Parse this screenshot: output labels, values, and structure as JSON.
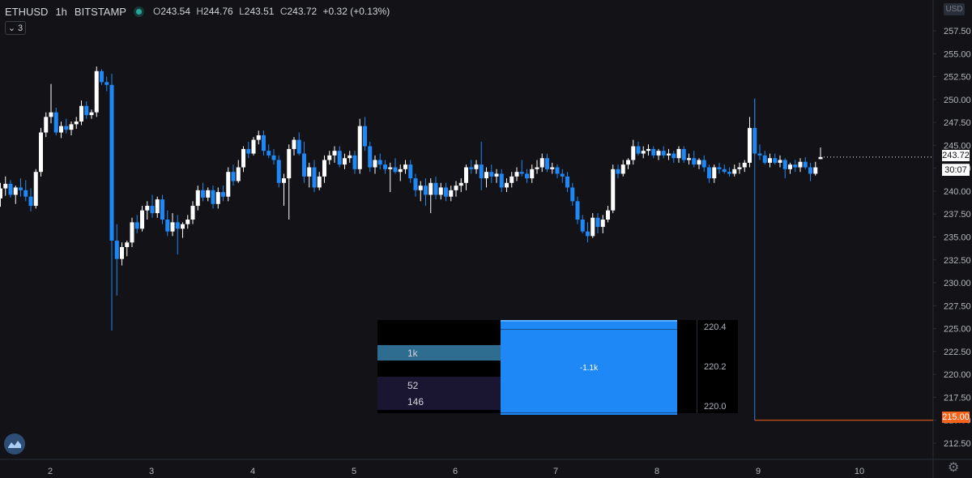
{
  "header": {
    "symbol": "ETHUSD",
    "interval": "1h",
    "exchange": "BITSTAMP",
    "open_label": "O",
    "open": "243.54",
    "high_label": "H",
    "high": "244.76",
    "low_label": "L",
    "low": "243.51",
    "close_label": "C",
    "close": "243.72",
    "change": "+0.32 (+0.13%)"
  },
  "indicators_count": "3",
  "currency": "USD",
  "last_price_label": "243.72",
  "countdown": "30:07",
  "alert_price_label": "215.00",
  "colors": {
    "up": "#ffffff",
    "down": "#1e88f7",
    "alert": "#f7631b",
    "background": "#131317"
  },
  "chart_data": {
    "type": "candlestick",
    "y_ticks": [
      "257.50",
      "255.00",
      "252.50",
      "250.00",
      "247.50",
      "245.00",
      "242.50",
      "240.00",
      "237.50",
      "235.00",
      "232.50",
      "230.00",
      "227.50",
      "225.00",
      "222.50",
      "220.00",
      "217.50",
      "215.00",
      "212.50"
    ],
    "x_ticks": [
      "2",
      "3",
      "4",
      "5",
      "6",
      "7",
      "8",
      "9",
      "10"
    ],
    "ylim": [
      211.1,
      259.1
    ],
    "grid": false,
    "last_price": 243.72,
    "alert_line": 215.0,
    "candle_hours": 180,
    "ohlc": [
      [
        0,
        239.2,
        240.9,
        238.3,
        240.3
      ],
      [
        1,
        240.3,
        241.6,
        239.5,
        240.8
      ],
      [
        2,
        240.8,
        241.2,
        239.3,
        239.6
      ],
      [
        3,
        239.6,
        240.6,
        238.6,
        240.4
      ],
      [
        4,
        240.4,
        241.4,
        239.4,
        240.1
      ],
      [
        5,
        240.1,
        241.2,
        238.9,
        239.4
      ],
      [
        6,
        239.4,
        240.3,
        237.8,
        238.4
      ],
      [
        7,
        238.4,
        242.4,
        238.1,
        242.1
      ],
      [
        8,
        242.1,
        246.9,
        241.6,
        246.4
      ],
      [
        9,
        246.4,
        248.6,
        245.9,
        248.1
      ],
      [
        10,
        248.1,
        251.7,
        247.4,
        248.6
      ],
      [
        11,
        248.6,
        249.1,
        246.1,
        246.4
      ],
      [
        12,
        246.4,
        247.6,
        245.8,
        247.1
      ],
      [
        13,
        247.1,
        247.9,
        246.3,
        246.7
      ],
      [
        14,
        246.7,
        247.6,
        246.1,
        247.3
      ],
      [
        15,
        247.3,
        248.1,
        246.8,
        247.6
      ],
      [
        16,
        247.6,
        249.9,
        247.2,
        249.3
      ],
      [
        17,
        249.3,
        249.8,
        247.9,
        248.3
      ],
      [
        18,
        248.3,
        248.9,
        247.9,
        248.6
      ],
      [
        19,
        248.6,
        253.6,
        248.1,
        253.1
      ],
      [
        20,
        253.1,
        253.3,
        251.6,
        251.9
      ],
      [
        21,
        251.9,
        252.5,
        250.9,
        251.6
      ],
      [
        22,
        251.6,
        252.8,
        224.8,
        234.6
      ],
      [
        23,
        234.6,
        236.4,
        228.6,
        232.6
      ],
      [
        24,
        232.6,
        234.4,
        231.9,
        233.9
      ],
      [
        25,
        233.9,
        234.6,
        232.9,
        234.4
      ],
      [
        26,
        234.4,
        237.1,
        233.9,
        236.6
      ],
      [
        27,
        236.6,
        237.4,
        235.4,
        235.9
      ],
      [
        28,
        235.9,
        238.4,
        235.6,
        237.9
      ],
      [
        29,
        237.9,
        238.9,
        236.9,
        238.4
      ],
      [
        30,
        238.4,
        239.6,
        237.1,
        237.6
      ],
      [
        31,
        237.6,
        239.4,
        237.1,
        239.1
      ],
      [
        32,
        239.1,
        239.6,
        236.4,
        236.9
      ],
      [
        33,
        236.9,
        237.9,
        235.1,
        235.6
      ],
      [
        34,
        235.6,
        237.6,
        235.1,
        236.6
      ],
      [
        35,
        236.6,
        237.4,
        233.1,
        235.9
      ],
      [
        36,
        235.9,
        236.6,
        234.9,
        236.4
      ],
      [
        37,
        236.4,
        237.4,
        235.9,
        236.9
      ],
      [
        38,
        236.9,
        238.9,
        236.4,
        238.4
      ],
      [
        39,
        238.4,
        240.6,
        237.9,
        240.1
      ],
      [
        40,
        240.1,
        240.9,
        238.9,
        239.3
      ],
      [
        41,
        239.3,
        240.4,
        238.9,
        240.1
      ],
      [
        42,
        240.1,
        240.6,
        238.1,
        238.6
      ],
      [
        43,
        238.6,
        240.4,
        238.1,
        239.9
      ],
      [
        44,
        239.9,
        240.6,
        238.9,
        239.4
      ],
      [
        45,
        239.4,
        242.6,
        238.9,
        242.1
      ],
      [
        46,
        242.1,
        242.9,
        240.6,
        241.1
      ],
      [
        47,
        241.1,
        243.4,
        240.9,
        242.6
      ],
      [
        48,
        242.6,
        244.9,
        242.1,
        244.6
      ],
      [
        49,
        244.6,
        245.4,
        243.6,
        244.1
      ],
      [
        50,
        244.1,
        245.9,
        243.9,
        245.6
      ],
      [
        51,
        245.6,
        246.6,
        245.1,
        246.1
      ],
      [
        52,
        246.1,
        246.6,
        243.9,
        244.4
      ],
      [
        53,
        244.4,
        245.1,
        243.6,
        243.9
      ],
      [
        54,
        243.9,
        244.6,
        242.9,
        243.4
      ],
      [
        55,
        243.4,
        243.9,
        240.4,
        240.9
      ],
      [
        56,
        240.9,
        241.9,
        238.4,
        241.4
      ],
      [
        57,
        241.4,
        245.1,
        236.9,
        244.6
      ],
      [
        58,
        244.6,
        245.9,
        243.9,
        245.6
      ],
      [
        59,
        245.6,
        246.4,
        243.9,
        244.1
      ],
      [
        60,
        244.1,
        245.4,
        240.9,
        241.6
      ],
      [
        61,
        241.6,
        243.1,
        240.4,
        242.6
      ],
      [
        62,
        242.6,
        243.4,
        239.9,
        240.4
      ],
      [
        63,
        240.4,
        242.1,
        240.1,
        241.6
      ],
      [
        64,
        241.6,
        243.9,
        240.9,
        243.4
      ],
      [
        65,
        243.4,
        244.4,
        242.9,
        243.9
      ],
      [
        66,
        243.9,
        244.9,
        243.1,
        244.4
      ],
      [
        67,
        244.4,
        244.9,
        242.6,
        242.9
      ],
      [
        68,
        242.9,
        244.1,
        242.4,
        243.6
      ],
      [
        69,
        243.6,
        244.4,
        243.1,
        243.9
      ],
      [
        70,
        243.9,
        244.4,
        241.9,
        242.4
      ],
      [
        71,
        242.4,
        247.9,
        241.9,
        247.1
      ],
      [
        72,
        247.1,
        248.1,
        244.4,
        244.9
      ],
      [
        73,
        244.9,
        245.4,
        242.1,
        242.6
      ],
      [
        74,
        242.6,
        243.9,
        241.9,
        243.4
      ],
      [
        75,
        243.4,
        244.1,
        242.4,
        242.9
      ],
      [
        76,
        242.9,
        243.4,
        241.9,
        242.4
      ],
      [
        77,
        242.4,
        243.1,
        239.9,
        242.6
      ],
      [
        78,
        242.6,
        243.6,
        241.9,
        242.1
      ],
      [
        79,
        242.1,
        242.9,
        241.1,
        242.4
      ],
      [
        80,
        242.4,
        243.4,
        241.9,
        242.9
      ],
      [
        81,
        242.9,
        243.4,
        240.9,
        241.4
      ],
      [
        82,
        241.4,
        241.9,
        239.4,
        240.1
      ],
      [
        83,
        240.1,
        241.1,
        238.9,
        240.6
      ],
      [
        84,
        240.6,
        241.4,
        238.4,
        239.6
      ],
      [
        85,
        239.6,
        241.4,
        237.6,
        240.9
      ],
      [
        86,
        240.9,
        241.6,
        239.1,
        239.6
      ],
      [
        87,
        239.6,
        240.9,
        239.1,
        240.4
      ],
      [
        88,
        240.4,
        240.9,
        238.9,
        239.4
      ],
      [
        89,
        239.4,
        240.6,
        238.9,
        240.1
      ],
      [
        90,
        240.1,
        241.1,
        239.4,
        240.6
      ],
      [
        91,
        240.6,
        241.4,
        239.9,
        240.9
      ],
      [
        92,
        240.9,
        242.9,
        240.1,
        242.6
      ],
      [
        93,
        242.6,
        243.4,
        241.9,
        242.4
      ],
      [
        94,
        242.4,
        243.4,
        241.9,
        242.9
      ],
      [
        95,
        242.9,
        245.4,
        240.1,
        241.4
      ],
      [
        96,
        241.4,
        242.6,
        240.4,
        242.1
      ],
      [
        97,
        242.1,
        242.9,
        240.9,
        241.6
      ],
      [
        98,
        241.6,
        242.4,
        240.9,
        241.9
      ],
      [
        99,
        241.9,
        242.4,
        239.9,
        240.4
      ],
      [
        100,
        240.4,
        241.4,
        239.9,
        240.9
      ],
      [
        101,
        240.9,
        242.1,
        240.4,
        241.6
      ],
      [
        102,
        241.6,
        242.6,
        241.1,
        242.1
      ],
      [
        103,
        242.1,
        243.4,
        241.6,
        241.9
      ],
      [
        104,
        241.9,
        242.4,
        240.9,
        241.4
      ],
      [
        105,
        241.4,
        242.9,
        240.9,
        242.4
      ],
      [
        106,
        242.4,
        243.4,
        241.9,
        242.6
      ],
      [
        107,
        242.6,
        244.1,
        242.1,
        243.6
      ],
      [
        108,
        243.6,
        244.1,
        242.1,
        242.4
      ],
      [
        109,
        242.4,
        243.1,
        241.9,
        242.6
      ],
      [
        110,
        242.6,
        242.9,
        241.4,
        241.9
      ],
      [
        111,
        241.9,
        242.4,
        240.9,
        241.6
      ],
      [
        112,
        241.6,
        242.1,
        239.9,
        240.4
      ],
      [
        113,
        240.4,
        240.9,
        238.4,
        238.9
      ],
      [
        114,
        238.9,
        239.4,
        236.4,
        236.9
      ],
      [
        115,
        236.9,
        237.4,
        235.4,
        235.6
      ],
      [
        116,
        235.6,
        236.6,
        234.4,
        235.1
      ],
      [
        117,
        235.1,
        237.6,
        234.9,
        237.1
      ],
      [
        118,
        237.1,
        237.6,
        235.4,
        236.1
      ],
      [
        119,
        236.1,
        237.4,
        235.4,
        236.9
      ],
      [
        120,
        236.9,
        238.4,
        236.6,
        237.9
      ],
      [
        121,
        237.9,
        242.9,
        237.6,
        242.4
      ],
      [
        122,
        242.4,
        242.9,
        241.4,
        241.9
      ],
      [
        123,
        241.9,
        243.4,
        241.6,
        242.9
      ],
      [
        124,
        242.9,
        243.6,
        242.4,
        243.4
      ],
      [
        125,
        243.4,
        245.6,
        242.9,
        244.9
      ],
      [
        126,
        244.9,
        245.4,
        243.9,
        244.1
      ],
      [
        127,
        244.1,
        244.9,
        243.6,
        244.4
      ],
      [
        128,
        244.4,
        245.1,
        243.9,
        244.6
      ],
      [
        129,
        244.6,
        244.9,
        243.6,
        243.9
      ],
      [
        130,
        243.9,
        244.6,
        243.4,
        244.4
      ],
      [
        131,
        244.4,
        244.9,
        243.6,
        243.9
      ],
      [
        132,
        243.9,
        244.6,
        243.4,
        244.1
      ],
      [
        133,
        244.1,
        244.4,
        243.1,
        243.6
      ],
      [
        134,
        243.6,
        244.9,
        243.1,
        244.6
      ],
      [
        135,
        244.6,
        244.9,
        243.1,
        243.4
      ],
      [
        136,
        243.4,
        244.1,
        242.9,
        243.6
      ],
      [
        137,
        243.6,
        244.4,
        242.6,
        242.9
      ],
      [
        138,
        242.9,
        243.6,
        242.4,
        243.4
      ],
      [
        139,
        243.4,
        243.9,
        242.1,
        242.6
      ],
      [
        140,
        242.6,
        242.9,
        240.9,
        241.4
      ],
      [
        141,
        241.4,
        242.9,
        240.9,
        242.6
      ],
      [
        142,
        242.6,
        243.1,
        241.9,
        242.4
      ],
      [
        143,
        242.4,
        242.9,
        241.9,
        242.1
      ],
      [
        144,
        242.1,
        242.6,
        241.6,
        241.9
      ],
      [
        145,
        241.9,
        242.9,
        241.6,
        242.4
      ],
      [
        146,
        242.4,
        243.1,
        241.9,
        242.6
      ],
      [
        147,
        242.6,
        243.4,
        242.1,
        243.1
      ],
      [
        148,
        243.1,
        248.1,
        242.6,
        246.9
      ],
      [
        149,
        246.9,
        250.1,
        243.9,
        244.1
      ],
      [
        150,
        244.1,
        245.1,
        243.4,
        243.9
      ],
      [
        151,
        243.9,
        244.4,
        242.9,
        243.1
      ],
      [
        152,
        243.1,
        244.1,
        242.6,
        243.6
      ],
      [
        153,
        243.6,
        244.1,
        242.9,
        243.1
      ],
      [
        154,
        243.1,
        243.9,
        242.6,
        243.4
      ],
      [
        155,
        243.4,
        243.6,
        241.4,
        242.4
      ],
      [
        156,
        242.4,
        243.1,
        241.9,
        242.9
      ],
      [
        157,
        242.9,
        243.4,
        242.1,
        242.6
      ],
      [
        158,
        242.6,
        243.6,
        242.1,
        243.2
      ],
      [
        159,
        243.2,
        243.7,
        242.4,
        242.6
      ],
      [
        160,
        242.6,
        243.1,
        241.1,
        241.9
      ],
      [
        161,
        241.9,
        243.2,
        241.7,
        242.6
      ],
      [
        162,
        243.5,
        244.76,
        243.51,
        243.72
      ]
    ],
    "alert_price": "215.00"
  },
  "depth_widget": {
    "rows": [
      {
        "label": "1k"
      },
      {
        "label": "52"
      },
      {
        "label": "146"
      }
    ],
    "block_label": "-1.1k",
    "scale": [
      "220.4",
      "220.2",
      "220.0"
    ]
  }
}
